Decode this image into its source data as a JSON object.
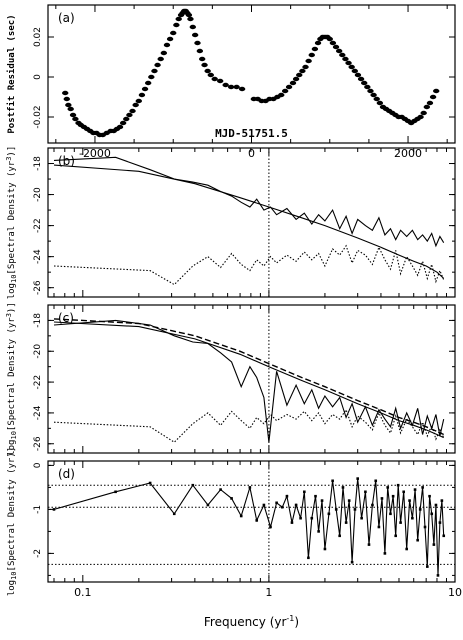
{
  "chart_data": [
    {
      "type": "scatter",
      "panel_label": "(a)",
      "ylabel": "Postfit Residual (sec)",
      "annotation": "MJD-51751.5",
      "xlim": [
        -2600,
        2600
      ],
      "ylim": [
        -0.033,
        0.036
      ],
      "xticks": [
        -2000,
        0,
        2000
      ],
      "yticks": [
        -0.02,
        0,
        0.02
      ],
      "xtick_labels": [
        "-2000",
        "0",
        "2000"
      ],
      "ytick_labels": [
        "-0.02",
        "0",
        "0.02"
      ],
      "points": [
        [
          -2380,
          -0.008
        ],
        [
          -2360,
          -0.011
        ],
        [
          -2340,
          -0.014
        ],
        [
          -2310,
          -0.016
        ],
        [
          -2280,
          -0.019
        ],
        [
          -2250,
          -0.021
        ],
        [
          -2210,
          -0.023
        ],
        [
          -2180,
          -0.024
        ],
        [
          -2140,
          -0.025
        ],
        [
          -2100,
          -0.026
        ],
        [
          -2060,
          -0.027
        ],
        [
          -2020,
          -0.028
        ],
        [
          -1980,
          -0.028
        ],
        [
          -1940,
          -0.029
        ],
        [
          -1900,
          -0.029
        ],
        [
          -1850,
          -0.028
        ],
        [
          -1800,
          -0.027
        ],
        [
          -1760,
          -0.027
        ],
        [
          -1720,
          -0.026
        ],
        [
          -1680,
          -0.025
        ],
        [
          -1640,
          -0.023
        ],
        [
          -1600,
          -0.021
        ],
        [
          -1560,
          -0.019
        ],
        [
          -1520,
          -0.017
        ],
        [
          -1480,
          -0.014
        ],
        [
          -1440,
          -0.012
        ],
        [
          -1400,
          -0.009
        ],
        [
          -1360,
          -0.006
        ],
        [
          -1320,
          -0.003
        ],
        [
          -1280,
          0.0
        ],
        [
          -1240,
          0.003
        ],
        [
          -1200,
          0.006
        ],
        [
          -1160,
          0.009
        ],
        [
          -1120,
          0.012
        ],
        [
          -1080,
          0.016
        ],
        [
          -1040,
          0.019
        ],
        [
          -1000,
          0.022
        ],
        [
          -960,
          0.026
        ],
        [
          -930,
          0.029
        ],
        [
          -900,
          0.031
        ],
        [
          -880,
          0.032
        ],
        [
          -860,
          0.033
        ],
        [
          -840,
          0.033
        ],
        [
          -820,
          0.032
        ],
        [
          -800,
          0.031
        ],
        [
          -780,
          0.029
        ],
        [
          -750,
          0.025
        ],
        [
          -720,
          0.021
        ],
        [
          -690,
          0.017
        ],
        [
          -660,
          0.013
        ],
        [
          -630,
          0.009
        ],
        [
          -600,
          0.006
        ],
        [
          -560,
          0.003
        ],
        [
          -520,
          0.001
        ],
        [
          -470,
          -0.001
        ],
        [
          -400,
          -0.002
        ],
        [
          -330,
          -0.004
        ],
        [
          -260,
          -0.005
        ],
        [
          -190,
          -0.005
        ],
        [
          -120,
          -0.006
        ],
        [
          30,
          -0.011
        ],
        [
          80,
          -0.011
        ],
        [
          130,
          -0.012
        ],
        [
          180,
          -0.012
        ],
        [
          230,
          -0.011
        ],
        [
          280,
          -0.011
        ],
        [
          330,
          -0.01
        ],
        [
          380,
          -0.009
        ],
        [
          430,
          -0.007
        ],
        [
          480,
          -0.005
        ],
        [
          530,
          -0.003
        ],
        [
          570,
          -0.001
        ],
        [
          610,
          0.001
        ],
        [
          650,
          0.003
        ],
        [
          690,
          0.005
        ],
        [
          730,
          0.008
        ],
        [
          770,
          0.011
        ],
        [
          810,
          0.014
        ],
        [
          850,
          0.017
        ],
        [
          880,
          0.019
        ],
        [
          910,
          0.02
        ],
        [
          940,
          0.02
        ],
        [
          970,
          0.02
        ],
        [
          1000,
          0.019
        ],
        [
          1040,
          0.017
        ],
        [
          1080,
          0.015
        ],
        [
          1120,
          0.013
        ],
        [
          1160,
          0.011
        ],
        [
          1200,
          0.009
        ],
        [
          1240,
          0.007
        ],
        [
          1280,
          0.005
        ],
        [
          1320,
          0.003
        ],
        [
          1360,
          0.001
        ],
        [
          1400,
          -0.001
        ],
        [
          1440,
          -0.003
        ],
        [
          1480,
          -0.005
        ],
        [
          1520,
          -0.007
        ],
        [
          1560,
          -0.009
        ],
        [
          1600,
          -0.011
        ],
        [
          1640,
          -0.013
        ],
        [
          1680,
          -0.015
        ],
        [
          1720,
          -0.016
        ],
        [
          1760,
          -0.017
        ],
        [
          1800,
          -0.018
        ],
        [
          1840,
          -0.019
        ],
        [
          1880,
          -0.02
        ],
        [
          1920,
          -0.02
        ],
        [
          1960,
          -0.021
        ],
        [
          2000,
          -0.022
        ],
        [
          2040,
          -0.023
        ],
        [
          2080,
          -0.022
        ],
        [
          2120,
          -0.021
        ],
        [
          2160,
          -0.02
        ],
        [
          2200,
          -0.018
        ],
        [
          2240,
          -0.015
        ],
        [
          2280,
          -0.013
        ],
        [
          2320,
          -0.01
        ],
        [
          2360,
          -0.007
        ]
      ]
    },
    {
      "type": "line",
      "panel_label": "(b)",
      "ylabel": "log10[Spectral Density (yr3)]",
      "ylim": [
        -26.6,
        -17.0
      ],
      "yticks": [
        -18,
        -20,
        -22,
        -24,
        -26
      ],
      "ytick_labels": [
        "-18",
        "-20",
        "-22",
        "-24",
        "-26"
      ],
      "xscale": "log",
      "xlim": [
        0.065,
        10
      ],
      "vline_x": 1,
      "series": [
        {
          "style": "solid",
          "x": [
            0.07,
            0.15,
            0.23,
            0.31,
            0.39,
            0.47,
            0.55,
            0.63,
            0.71,
            0.79,
            0.86,
            0.94,
            1.02,
            1.1,
            1.25,
            1.4,
            1.55,
            1.7,
            1.85,
            2.0,
            2.2,
            2.4,
            2.6,
            2.8,
            3.0,
            3.3,
            3.6,
            3.9,
            4.2,
            4.5,
            4.8,
            5.1,
            5.5,
            5.9,
            6.3,
            6.7,
            7.1,
            7.5,
            7.9,
            8.3,
            8.7
          ],
          "y": [
            -17.8,
            -17.6,
            -18.4,
            -19.0,
            -19.2,
            -19.4,
            -19.8,
            -20.1,
            -20.5,
            -20.8,
            -20.3,
            -21.0,
            -20.8,
            -21.3,
            -20.9,
            -21.6,
            -21.2,
            -21.9,
            -21.3,
            -21.7,
            -21.0,
            -22.2,
            -21.4,
            -22.5,
            -21.6,
            -22.0,
            -22.3,
            -21.5,
            -22.6,
            -22.2,
            -22.9,
            -22.3,
            -22.7,
            -22.3,
            -22.9,
            -22.6,
            -23.0,
            -22.5,
            -23.3,
            -22.7,
            -23.1
          ]
        },
        {
          "style": "solid",
          "x": [
            0.07,
            0.2,
            0.4,
            0.7,
            1.0,
            1.5,
            2.0,
            3.0,
            4.0,
            5.0,
            6.0,
            7.0,
            8.0,
            8.7
          ],
          "y": [
            -18.1,
            -18.5,
            -19.3,
            -20.2,
            -20.8,
            -21.5,
            -22.0,
            -22.8,
            -23.4,
            -23.9,
            -24.3,
            -24.6,
            -25.0,
            -25.4
          ]
        },
        {
          "style": "dotted",
          "x": [
            0.07,
            0.23,
            0.31,
            0.39,
            0.47,
            0.55,
            0.63,
            0.71,
            0.79,
            0.86,
            0.94,
            1.02,
            1.1,
            1.25,
            1.4,
            1.55,
            1.7,
            1.85,
            2.0,
            2.2,
            2.4,
            2.6,
            2.8,
            3.0,
            3.3,
            3.6,
            3.9,
            4.2,
            4.5,
            4.8,
            5.1,
            5.5,
            5.9,
            6.3,
            6.7,
            7.1,
            7.5,
            7.9,
            8.3,
            8.7
          ],
          "y": [
            -24.6,
            -24.9,
            -25.8,
            -24.6,
            -24.0,
            -24.7,
            -23.8,
            -24.5,
            -24.9,
            -24.2,
            -24.6,
            -24.0,
            -24.4,
            -23.9,
            -24.3,
            -23.7,
            -24.2,
            -23.8,
            -24.6,
            -23.5,
            -23.9,
            -23.3,
            -24.4,
            -23.6,
            -23.9,
            -24.5,
            -23.4,
            -24.2,
            -24.8,
            -23.6,
            -25.1,
            -24.0,
            -24.6,
            -25.2,
            -24.3,
            -25.4,
            -24.5,
            -25.6,
            -24.9,
            -25.5
          ]
        }
      ]
    },
    {
      "type": "line",
      "panel_label": "(c)",
      "ylabel": "log10[Spectral Density (yr3)]",
      "ylim": [
        -26.6,
        -17.0
      ],
      "yticks": [
        -18,
        -20,
        -22,
        -24,
        -26
      ],
      "ytick_labels": [
        "-18",
        "-20",
        "-22",
        "-24",
        "-26"
      ],
      "xscale": "log",
      "xlim": [
        0.065,
        10
      ],
      "vline_x": 1,
      "series": [
        {
          "style": "solid",
          "x": [
            0.07,
            0.15,
            0.23,
            0.31,
            0.39,
            0.47,
            0.55,
            0.63,
            0.71,
            0.79,
            0.86,
            0.94,
            1.0,
            1.1,
            1.25,
            1.4,
            1.55,
            1.7,
            1.85,
            2.0,
            2.2,
            2.4,
            2.6,
            2.8,
            3.0,
            3.3,
            3.6,
            3.9,
            4.2,
            4.5,
            4.8,
            5.1,
            5.5,
            5.9,
            6.3,
            6.7,
            7.1,
            7.5,
            7.9,
            8.3,
            8.7
          ],
          "y": [
            -18.3,
            -18.0,
            -18.3,
            -19.0,
            -19.4,
            -19.5,
            -20.1,
            -20.7,
            -22.3,
            -21.0,
            -21.7,
            -23.0,
            -25.9,
            -21.3,
            -23.5,
            -22.2,
            -23.4,
            -22.5,
            -23.7,
            -22.9,
            -23.6,
            -23.0,
            -24.3,
            -23.4,
            -24.6,
            -23.6,
            -24.8,
            -23.8,
            -24.4,
            -24.9,
            -23.7,
            -25.0,
            -24.0,
            -24.8,
            -23.7,
            -25.4,
            -24.2,
            -25.0,
            -24.1,
            -25.5,
            -24.4
          ]
        },
        {
          "style": "solid",
          "x": [
            0.07,
            0.2,
            0.4,
            0.7,
            1.0,
            1.5,
            2.0,
            3.0,
            4.0,
            5.0,
            6.0,
            7.0,
            8.0,
            8.7
          ],
          "y": [
            -18.1,
            -18.4,
            -19.2,
            -20.2,
            -21.0,
            -21.9,
            -22.5,
            -23.4,
            -24.0,
            -24.5,
            -24.8,
            -25.1,
            -25.4,
            -25.6
          ]
        },
        {
          "style": "dashed",
          "x": [
            0.07,
            0.2,
            0.4,
            0.7,
            1.0,
            1.5,
            2.0,
            3.0,
            4.0,
            5.0,
            6.0,
            7.0,
            8.0,
            8.7
          ],
          "y": [
            -17.9,
            -18.2,
            -19.0,
            -20.0,
            -20.8,
            -21.7,
            -22.3,
            -23.2,
            -23.8,
            -24.3,
            -24.6,
            -24.9,
            -25.2,
            -25.4
          ]
        },
        {
          "style": "dotted",
          "x": [
            0.07,
            0.23,
            0.31,
            0.39,
            0.47,
            0.55,
            0.63,
            0.71,
            0.79,
            0.86,
            0.94,
            1.02,
            1.1,
            1.25,
            1.4,
            1.55,
            1.7,
            1.85,
            2.0,
            2.2,
            2.4,
            2.6,
            2.8,
            3.0,
            3.3,
            3.6,
            3.9,
            4.2,
            4.5,
            4.8,
            5.1,
            5.5,
            5.9,
            6.3,
            6.7,
            7.1,
            7.5,
            7.9,
            8.3,
            8.7
          ],
          "y": [
            -24.6,
            -24.9,
            -25.9,
            -24.7,
            -24.0,
            -24.8,
            -23.9,
            -24.5,
            -25.0,
            -24.3,
            -24.7,
            -24.1,
            -24.5,
            -24.1,
            -24.4,
            -23.9,
            -24.5,
            -24.0,
            -24.7,
            -24.1,
            -24.4,
            -23.8,
            -24.9,
            -24.2,
            -24.6,
            -25.1,
            -24.0,
            -24.8,
            -25.3,
            -24.2,
            -25.3,
            -24.4,
            -24.9,
            -25.4,
            -24.6,
            -25.5,
            -24.8,
            -25.7,
            -25.1,
            -25.6
          ]
        }
      ]
    },
    {
      "type": "line",
      "panel_label": "(d)",
      "ylabel": "log10[Spectral Density (yr)]",
      "ylim": [
        -2.65,
        0.1
      ],
      "yticks": [
        0,
        -1,
        -2
      ],
      "ytick_labels": [
        "0",
        "-1",
        "-2"
      ],
      "xscale": "log",
      "xlim": [
        0.065,
        10
      ],
      "xticks": [
        0.1,
        1,
        10
      ],
      "xtick_labels": [
        "0.1",
        "1",
        "10"
      ],
      "xlabel": "Frequency (yr-1)",
      "vline_x": 1,
      "hlines": [
        -0.45,
        -0.95,
        -2.25
      ],
      "series": [
        {
          "style": "solid-markers",
          "x": [
            0.07,
            0.15,
            0.23,
            0.31,
            0.39,
            0.47,
            0.55,
            0.63,
            0.71,
            0.79,
            0.86,
            0.94,
            1.02,
            1.1,
            1.18,
            1.25,
            1.33,
            1.4,
            1.48,
            1.55,
            1.63,
            1.7,
            1.78,
            1.85,
            1.93,
            2.0,
            2.1,
            2.2,
            2.3,
            2.4,
            2.5,
            2.6,
            2.7,
            2.8,
            2.9,
            3.0,
            3.15,
            3.3,
            3.45,
            3.6,
            3.75,
            3.9,
            4.05,
            4.2,
            4.35,
            4.5,
            4.65,
            4.8,
            4.95,
            5.1,
            5.3,
            5.5,
            5.7,
            5.9,
            6.1,
            6.3,
            6.5,
            6.7,
            6.9,
            7.1,
            7.3,
            7.5,
            7.7,
            7.9,
            8.1,
            8.3,
            8.5,
            8.7
          ],
          "y": [
            -1.0,
            -0.6,
            -0.4,
            -1.1,
            -0.45,
            -0.9,
            -0.55,
            -0.75,
            -1.15,
            -0.5,
            -1.25,
            -0.9,
            -1.4,
            -0.85,
            -0.95,
            -0.7,
            -1.3,
            -0.9,
            -1.2,
            -0.6,
            -2.1,
            -1.2,
            -0.7,
            -1.5,
            -0.8,
            -1.9,
            -1.1,
            -0.35,
            -1.0,
            -1.6,
            -0.5,
            -1.3,
            -0.8,
            -2.2,
            -1.0,
            -0.3,
            -1.2,
            -0.6,
            -1.8,
            -0.9,
            -0.35,
            -1.4,
            -0.75,
            -2.0,
            -0.5,
            -1.1,
            -0.7,
            -1.6,
            -0.45,
            -1.3,
            -0.6,
            -1.9,
            -0.8,
            -1.2,
            -0.55,
            -1.7,
            -1.0,
            -0.5,
            -1.4,
            -2.3,
            -0.7,
            -1.1,
            -1.8,
            -0.9,
            -2.5,
            -1.3,
            -0.8,
            -1.6
          ]
        }
      ]
    }
  ]
}
